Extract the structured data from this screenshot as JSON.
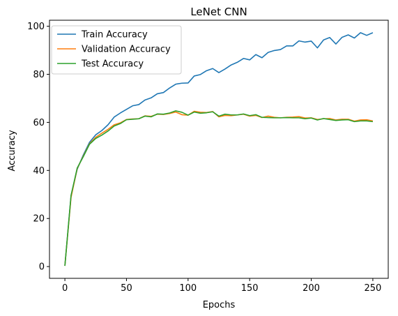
{
  "chart_data": {
    "type": "line",
    "title": "LeNet CNN",
    "xlabel": "Epochs",
    "ylabel": "Accuracy",
    "xlim": [
      -12.5,
      262.5
    ],
    "ylim": [
      -4.9,
      102.5
    ],
    "xticks": [
      0,
      50,
      100,
      150,
      200,
      250
    ],
    "yticks": [
      0,
      20,
      40,
      60,
      80,
      100
    ],
    "grid": false,
    "legend_position": "top-left",
    "x": [
      0,
      5,
      10,
      15,
      20,
      25,
      30,
      35,
      40,
      45,
      50,
      55,
      60,
      65,
      70,
      75,
      80,
      85,
      90,
      95,
      100,
      105,
      110,
      115,
      120,
      125,
      130,
      135,
      140,
      145,
      150,
      155,
      160,
      165,
      170,
      175,
      180,
      185,
      190,
      195,
      200,
      205,
      210,
      215,
      220,
      225,
      230,
      235,
      240,
      245,
      250
    ],
    "series": [
      {
        "name": "Train Accuracy",
        "color": "#1f77b4",
        "values": [
          0.3,
          29.5,
          40.5,
          46.5,
          51.7,
          54.8,
          56.6,
          59.0,
          62.2,
          63.9,
          65.4,
          66.9,
          67.4,
          69.3,
          70.2,
          71.9,
          72.4,
          74.3,
          75.9,
          76.3,
          76.4,
          79.3,
          79.9,
          81.5,
          82.4,
          80.7,
          82.2,
          83.9,
          85.0,
          86.6,
          86.0,
          88.2,
          86.9,
          89.1,
          89.9,
          90.3,
          91.8,
          91.8,
          93.9,
          93.4,
          93.8,
          91.0,
          94.3,
          95.3,
          92.6,
          95.4,
          96.4,
          95.1,
          97.3,
          96.2,
          97.3
        ]
      },
      {
        "name": "Validation Accuracy",
        "color": "#ff7f0e",
        "values": [
          0.3,
          28.8,
          40.8,
          46.0,
          51.1,
          53.8,
          55.5,
          57.1,
          59.0,
          59.8,
          61.2,
          61.4,
          61.5,
          62.7,
          62.5,
          63.4,
          63.3,
          63.7,
          64.3,
          63.2,
          63.0,
          64.6,
          64.2,
          64.1,
          64.5,
          62.3,
          62.9,
          62.8,
          63.1,
          63.4,
          62.6,
          62.9,
          62.0,
          62.6,
          62.1,
          61.9,
          62.1,
          62.2,
          62.4,
          61.8,
          61.9,
          61.2,
          61.5,
          61.6,
          61.0,
          61.3,
          61.3,
          60.5,
          61.0,
          61.1,
          60.6
        ]
      },
      {
        "name": "Test Accuracy",
        "color": "#2ca02c",
        "values": [
          0.3,
          29.6,
          41.0,
          45.8,
          50.9,
          53.3,
          54.7,
          56.4,
          58.5,
          59.5,
          61.1,
          61.3,
          61.5,
          62.6,
          62.3,
          63.5,
          63.4,
          63.9,
          64.8,
          64.2,
          63.0,
          64.3,
          63.8,
          64.0,
          64.4,
          62.6,
          63.4,
          63.1,
          63.1,
          63.5,
          62.8,
          63.2,
          62.1,
          62.0,
          61.9,
          61.9,
          62.0,
          61.9,
          61.9,
          61.5,
          61.8,
          61.0,
          61.6,
          61.2,
          60.8,
          61.0,
          61.1,
          60.3,
          60.6,
          60.6,
          60.3
        ]
      }
    ]
  }
}
